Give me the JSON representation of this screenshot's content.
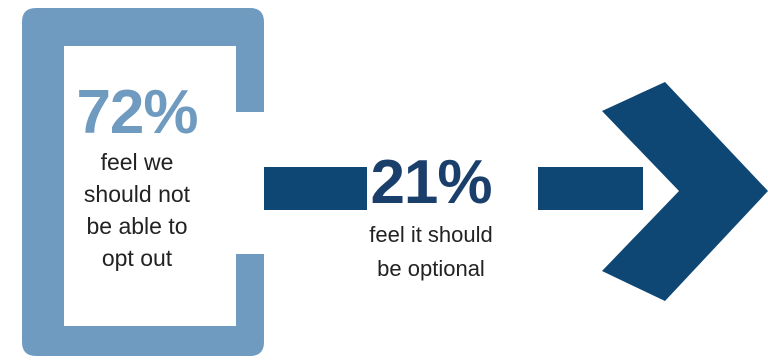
{
  "colors": {
    "bracket": "#6f9bc0",
    "navy": "#0e4674",
    "pct_light": "#6f9bc0",
    "pct_dark": "#1b3f6b"
  },
  "left_stat": {
    "percent": "72%",
    "lines": [
      "feel we",
      "should not",
      "be able to",
      "opt out"
    ]
  },
  "middle_stat": {
    "percent": "21%",
    "lines": [
      "feel it should",
      "be optional"
    ]
  }
}
